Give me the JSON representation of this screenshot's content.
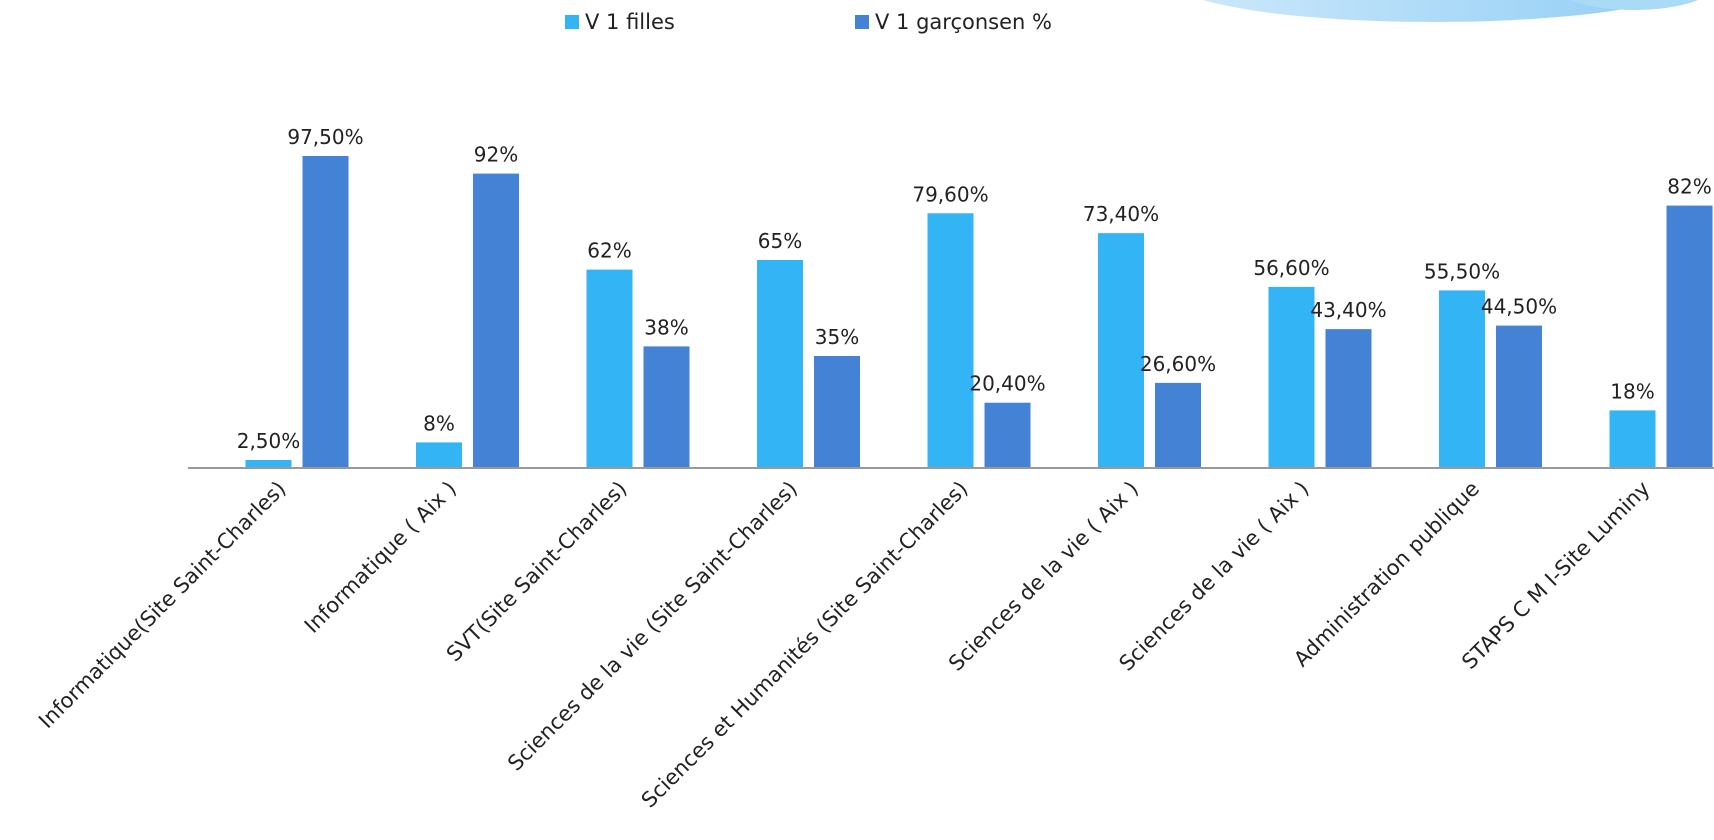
{
  "chart_data": {
    "type": "bar",
    "categories": [
      "Informatique(Site Saint-Charles)",
      "Informatique ( Aix )",
      "SVT(Site Saint-Charles)",
      "Sciences de la vie (Site Saint-Charles)",
      "Sciences et Humanités (Site Saint-Charles)",
      "Sciences de la vie ( Aix )",
      "Sciences de la vie ( Aix )",
      "Administration publique",
      "STAPS C M I-Site Luminy"
    ],
    "series": [
      {
        "name": "V 1 filles",
        "color": "#33b5f5",
        "values": [
          2.5,
          8,
          62,
          65,
          79.6,
          73.4,
          56.6,
          55.5,
          18
        ],
        "labels": [
          "2,50%",
          "8%",
          "62%",
          "65%",
          "79,60%",
          "73,40%",
          "56,60%",
          "55,50%",
          "18%"
        ]
      },
      {
        "name": "V 1 garçonsen %",
        "color": "#4382d4",
        "values": [
          97.5,
          92,
          38,
          35,
          20.4,
          26.6,
          43.4,
          44.5,
          82
        ],
        "labels": [
          "97,50%",
          "92%",
          "38%",
          "35%",
          "20,40%",
          "26,60%",
          "43,40%",
          "44,50%",
          "82%"
        ]
      }
    ],
    "ylim": [
      0,
      100
    ],
    "grid": false,
    "legend_position": "top"
  }
}
